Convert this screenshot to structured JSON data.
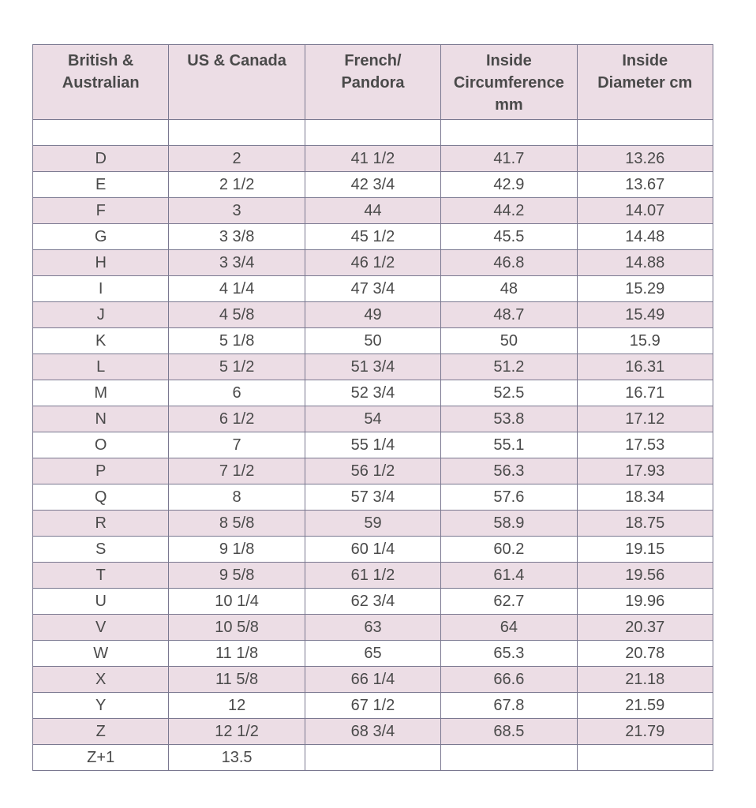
{
  "table": {
    "header": [
      [
        "British &",
        "Australian"
      ],
      [
        "US & Canada"
      ],
      [
        "French/",
        "Pandora"
      ],
      [
        "Inside",
        "Circumference",
        "mm"
      ],
      [
        "Inside",
        "Diameter cm"
      ]
    ],
    "rows": [
      [
        "D",
        "2",
        "41 1/2",
        "41.7",
        "13.26"
      ],
      [
        "E",
        "2 1/2",
        "42 3/4",
        "42.9",
        "13.67"
      ],
      [
        "F",
        "3",
        "44",
        "44.2",
        "14.07"
      ],
      [
        "G",
        "3 3/8",
        "45 1/2",
        "45.5",
        "14.48"
      ],
      [
        "H",
        "3 3/4",
        "46 1/2",
        "46.8",
        "14.88"
      ],
      [
        "I",
        "4 1/4",
        "47 3/4",
        "48",
        "15.29"
      ],
      [
        "J",
        "4 5/8",
        "49",
        "48.7",
        "15.49"
      ],
      [
        "K",
        "5 1/8",
        "50",
        "50",
        "15.9"
      ],
      [
        "L",
        "5 1/2",
        "51 3/4",
        "51.2",
        "16.31"
      ],
      [
        "M",
        "6",
        "52 3/4",
        "52.5",
        "16.71"
      ],
      [
        "N",
        "6 1/2",
        "54",
        "53.8",
        "17.12"
      ],
      [
        "O",
        "7",
        "55 1/4",
        "55.1",
        "17.53"
      ],
      [
        "P",
        "7 1/2",
        "56 1/2",
        "56.3",
        "17.93"
      ],
      [
        "Q",
        "8",
        "57 3/4",
        "57.6",
        "18.34"
      ],
      [
        "R",
        "8 5/8",
        "59",
        "58.9",
        "18.75"
      ],
      [
        "S",
        "9 1/8",
        "60 1/4",
        "60.2",
        "19.15"
      ],
      [
        "T",
        "9 5/8",
        "61 1/2",
        "61.4",
        "19.56"
      ],
      [
        "U",
        "10 1/4",
        "62 3/4",
        "62.7",
        "19.96"
      ],
      [
        "V",
        "10 5/8",
        "63",
        "64",
        "20.37"
      ],
      [
        "W",
        "11 1/8",
        "65",
        "65.3",
        "20.78"
      ],
      [
        "X",
        "11 5/8",
        "66 1/4",
        "66.6",
        "21.18"
      ],
      [
        "Y",
        "12",
        "67 1/2",
        "67.8",
        "21.59"
      ],
      [
        "Z",
        "12 1/2",
        "68 3/4",
        "68.5",
        "21.79"
      ],
      [
        "Z+1",
        "13.5"
      ]
    ]
  }
}
